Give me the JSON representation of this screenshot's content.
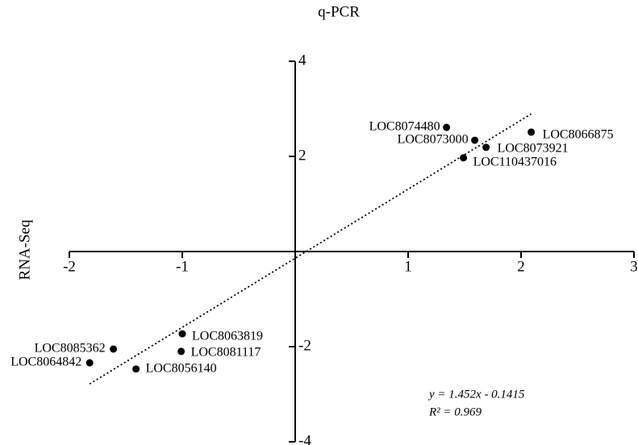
{
  "chart_data": {
    "type": "scatter",
    "title": "q-PCR",
    "y_label": "RNA-Seq",
    "labels": [
      "LOC8074480",
      "LOC8073000",
      "LOC8066875",
      "LOC8073921",
      "LOC110437016",
      "LOC8063819",
      "LOC8081117",
      "LOC8085362",
      "LOC8064842",
      "LOC8056140"
    ],
    "x": [
      1.34,
      1.59,
      2.09,
      1.69,
      1.49,
      -1.0,
      -1.01,
      -1.61,
      -1.82,
      -1.41
    ],
    "values": [
      2.61,
      2.34,
      2.51,
      2.19,
      1.97,
      -1.73,
      -2.1,
      -2.05,
      -2.34,
      -2.47
    ],
    "color": "#000000",
    "xlim": [
      -2,
      3
    ],
    "ylim": [
      -4,
      4
    ],
    "xticks": [
      -2,
      -1,
      1,
      2,
      3
    ],
    "yticks": [
      -4,
      -2,
      2,
      4
    ],
    "trendline": {
      "slope": 1.452,
      "intercept": -0.1415
    },
    "equation": "y = 1.452x - 0.1415",
    "r_squared": "R² = 0.969"
  }
}
